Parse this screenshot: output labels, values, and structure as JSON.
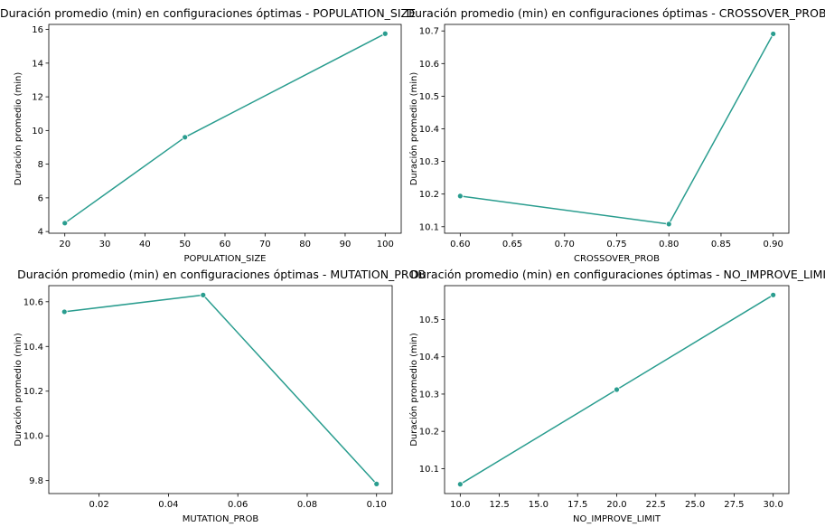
{
  "accent_color": "#2a9d8f",
  "chart_data": [
    {
      "type": "line",
      "title": "Duración promedio (min) en configuraciones óptimas - POPULATION_SIZE",
      "xlabel": "POPULATION_SIZE",
      "ylabel": "Duración promedio (min)",
      "x": [
        20,
        50,
        100
      ],
      "y": [
        4.5,
        9.6,
        15.75
      ],
      "xlim": [
        16,
        104
      ],
      "ylim": [
        3.9,
        16.3
      ],
      "xticks": [
        20,
        30,
        40,
        50,
        60,
        70,
        80,
        90,
        100
      ],
      "xtick_labels": [
        "20",
        "30",
        "40",
        "50",
        "60",
        "70",
        "80",
        "90",
        "100"
      ],
      "yticks": [
        4,
        6,
        8,
        10,
        12,
        14,
        16
      ],
      "ytick_labels": [
        "4",
        "6",
        "8",
        "10",
        "12",
        "14",
        "16"
      ],
      "grid": false,
      "marker": "circle"
    },
    {
      "type": "line",
      "title": "Duración promedio (min) en configuraciones óptimas - CROSSOVER_PROB",
      "xlabel": "CROSSOVER_PROB",
      "ylabel": "Duración promedio (min)",
      "x": [
        0.6,
        0.8,
        0.9
      ],
      "y": [
        10.194,
        10.108,
        10.691
      ],
      "xlim": [
        0.585,
        0.915
      ],
      "ylim": [
        10.08,
        10.72
      ],
      "xticks": [
        0.6,
        0.65,
        0.7,
        0.75,
        0.8,
        0.85,
        0.9
      ],
      "xtick_labels": [
        "0.60",
        "0.65",
        "0.70",
        "0.75",
        "0.80",
        "0.85",
        "0.90"
      ],
      "yticks": [
        10.1,
        10.2,
        10.3,
        10.4,
        10.5,
        10.6,
        10.7
      ],
      "ytick_labels": [
        "10.1",
        "10.2",
        "10.3",
        "10.4",
        "10.5",
        "10.6",
        "10.7"
      ],
      "grid": false,
      "marker": "circle"
    },
    {
      "type": "line",
      "title": "Duración promedio (min) en configuraciones óptimas - MUTATION_PROB",
      "xlabel": "MUTATION_PROB",
      "ylabel": "Duración promedio (min)",
      "x": [
        0.01,
        0.05,
        0.1
      ],
      "y": [
        10.555,
        10.63,
        9.785
      ],
      "xlim": [
        0.0055,
        0.1045
      ],
      "ylim": [
        9.742,
        10.672
      ],
      "xticks": [
        0.02,
        0.04,
        0.06,
        0.08,
        0.1
      ],
      "xtick_labels": [
        "0.02",
        "0.04",
        "0.06",
        "0.08",
        "0.10"
      ],
      "yticks": [
        9.8,
        10.0,
        10.2,
        10.4,
        10.6
      ],
      "ytick_labels": [
        "9.8",
        "10.0",
        "10.2",
        "10.4",
        "10.6"
      ],
      "grid": false,
      "marker": "circle"
    },
    {
      "type": "line",
      "title": "Duración promedio (min) en configuraciones óptimas - NO_IMPROVE_LIMIT",
      "xlabel": "NO_IMPROVE_LIMIT",
      "ylabel": "Duración promedio (min)",
      "x": [
        10,
        20,
        30
      ],
      "y": [
        10.058,
        10.312,
        10.566
      ],
      "xlim": [
        9.0,
        31.0
      ],
      "ylim": [
        10.033,
        10.591
      ],
      "xticks": [
        10,
        12.5,
        15,
        17.5,
        20,
        22.5,
        25,
        27.5,
        30
      ],
      "xtick_labels": [
        "10.0",
        "12.5",
        "15.0",
        "17.5",
        "20.0",
        "22.5",
        "25.0",
        "27.5",
        "30.0"
      ],
      "yticks": [
        10.1,
        10.2,
        10.3,
        10.4,
        10.5
      ],
      "ytick_labels": [
        "10.1",
        "10.2",
        "10.3",
        "10.4",
        "10.5"
      ],
      "grid": false,
      "marker": "circle"
    }
  ]
}
